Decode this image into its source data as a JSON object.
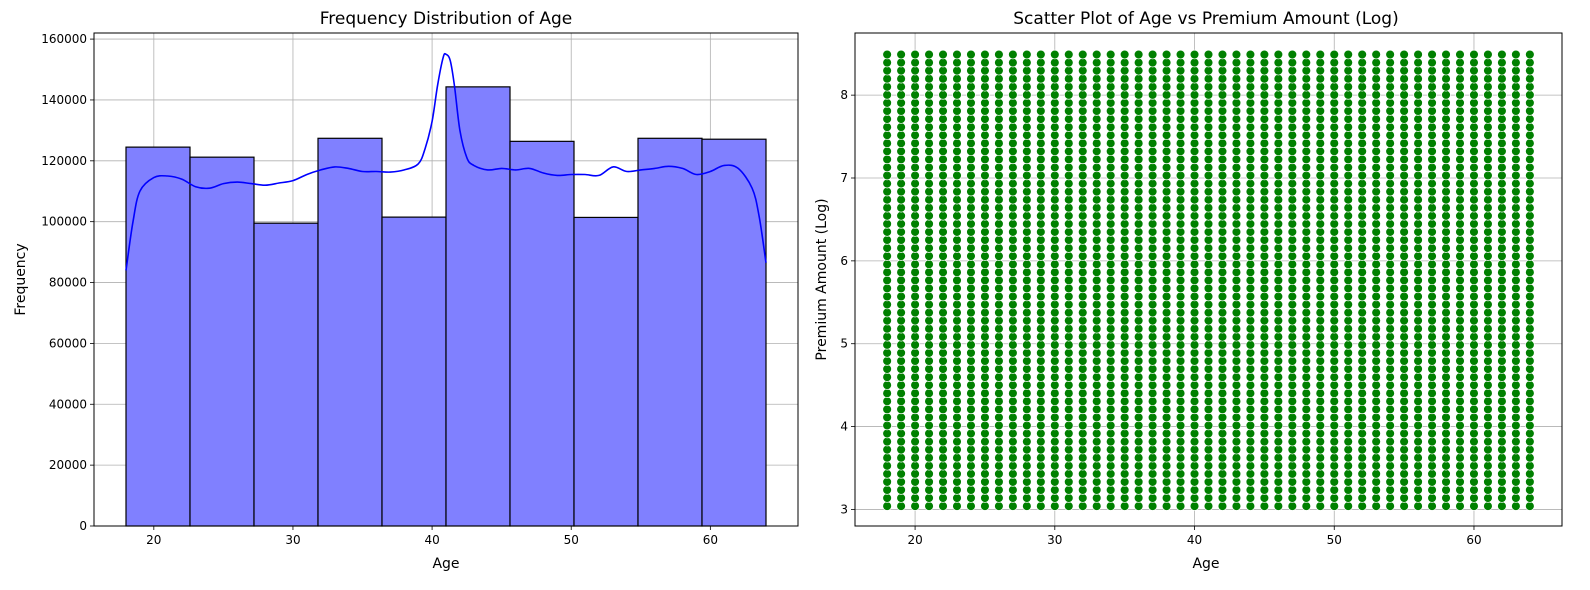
{
  "chart_data": [
    {
      "type": "histogram",
      "title": "Frequency Distribution of Age",
      "xlabel": "Age",
      "ylabel": "Frequency",
      "xlim": [
        15.7,
        66.3
      ],
      "ylim": [
        0,
        162000
      ],
      "xticks": [
        20,
        30,
        40,
        50,
        60
      ],
      "yticks": [
        0,
        20000,
        40000,
        60000,
        80000,
        100000,
        120000,
        140000,
        160000
      ],
      "grid": true,
      "bin_edges": [
        18,
        22.6,
        27.2,
        31.8,
        36.4,
        41,
        45.6,
        50.2,
        54.8,
        59.4,
        64
      ],
      "values": [
        124500,
        121200,
        99500,
        127400,
        101500,
        144300,
        126400,
        101400,
        127400,
        127100
      ],
      "bar_color": "#8080ff",
      "bar_edge_color": "#000000",
      "kde": {
        "color": "#0000ff",
        "x": [
          18,
          18.5,
          19,
          20,
          21,
          22,
          23,
          24,
          25,
          26,
          27,
          28,
          29,
          30,
          31,
          32,
          33,
          34,
          35,
          36,
          37,
          38,
          39,
          39.5,
          40,
          40.4,
          40.8,
          41,
          41.3,
          41.6,
          42,
          42.5,
          43,
          44,
          45,
          46,
          47,
          48,
          49,
          50,
          51,
          52,
          53,
          54,
          55,
          56,
          57,
          58,
          59,
          60,
          61,
          62,
          63,
          63.5,
          64
        ],
        "y": [
          84000,
          100000,
          110000,
          114500,
          115000,
          114000,
          111500,
          111000,
          112500,
          113000,
          112500,
          112000,
          112700,
          113500,
          115500,
          117000,
          118000,
          117500,
          116500,
          116500,
          116300,
          117000,
          119000,
          124000,
          133000,
          145000,
          154000,
          155000,
          153000,
          145000,
          130000,
          121000,
          118500,
          117000,
          117500,
          117000,
          117500,
          116000,
          115200,
          115500,
          115500,
          115200,
          118000,
          116500,
          117000,
          117500,
          118200,
          117500,
          115500,
          116500,
          118500,
          117500,
          111000,
          102000,
          86500
        ]
      }
    },
    {
      "type": "scatter",
      "title": "Scatter Plot of Age vs Premium Amount (Log)",
      "xlabel": "Age",
      "ylabel": "Premium Amount (Log)",
      "xlim": [
        15.7,
        66.3
      ],
      "ylim": [
        2.8,
        8.75
      ],
      "xticks": [
        20,
        30,
        40,
        50,
        60
      ],
      "yticks": [
        3,
        4,
        5,
        6,
        7,
        8
      ],
      "grid": true,
      "marker_color": "#008000",
      "marker_edge_color": "#ffffff",
      "ages": [
        18,
        19,
        20,
        21,
        22,
        23,
        24,
        25,
        26,
        27,
        28,
        29,
        30,
        31,
        32,
        33,
        34,
        35,
        36,
        37,
        38,
        39,
        40,
        41,
        42,
        43,
        44,
        45,
        46,
        47,
        48,
        49,
        50,
        51,
        52,
        53,
        54,
        55,
        56,
        57,
        58,
        59,
        60,
        61,
        62,
        63,
        64
      ],
      "premium_range": [
        3.04,
        8.49
      ]
    }
  ]
}
